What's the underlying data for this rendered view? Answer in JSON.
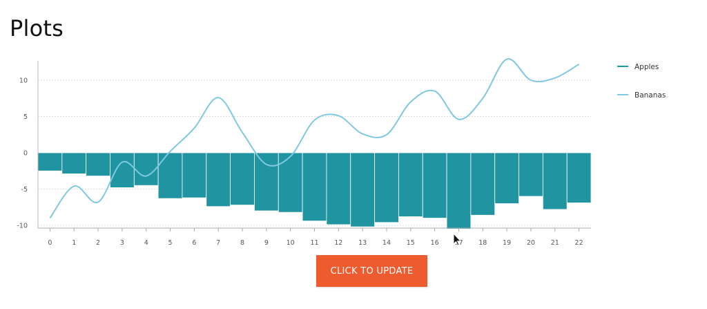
{
  "page": {
    "title": "Plots"
  },
  "button": {
    "update_label": "CLICK TO UPDATE"
  },
  "colors": {
    "apples": "#2094a0",
    "bananas": "#7ec8e3",
    "button": "#ee5b2f"
  },
  "chart_data": {
    "type": "bar",
    "x": [
      0,
      1,
      2,
      3,
      4,
      5,
      6,
      7,
      8,
      9,
      10,
      11,
      12,
      13,
      14,
      15,
      16,
      17,
      18,
      19,
      20,
      21,
      22
    ],
    "ylim": [
      -10.5,
      13
    ],
    "yticks": [
      -10,
      -5,
      0,
      5,
      10
    ],
    "grid": true,
    "legend_position": "right",
    "series": [
      {
        "name": "Apples",
        "type": "bar",
        "values": [
          -2.5,
          -2.9,
          -3.2,
          -4.8,
          -4.5,
          -6.3,
          -6.2,
          -7.4,
          -7.2,
          -8.0,
          -8.2,
          -9.4,
          -9.9,
          -10.2,
          -9.6,
          -8.8,
          -9.0,
          -10.5,
          -8.6,
          -7.0,
          -6.0,
          -7.8,
          -6.9
        ]
      },
      {
        "name": "Bananas",
        "type": "line",
        "values": [
          -9.0,
          -4.6,
          -6.8,
          -1.3,
          -3.2,
          0.2,
          3.4,
          7.6,
          2.8,
          -1.6,
          -0.5,
          4.5,
          5.1,
          2.6,
          2.5,
          7.0,
          8.5,
          4.6,
          7.5,
          12.9,
          10.0,
          10.3,
          12.2
        ]
      }
    ]
  }
}
